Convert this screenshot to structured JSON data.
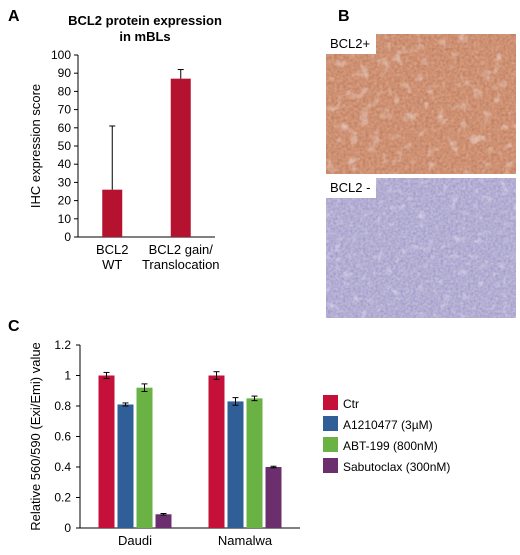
{
  "panels": {
    "a": "A",
    "b": "B",
    "c": "C"
  },
  "colors": {
    "panel_a_bar": "#b4122e",
    "ctr": "#c5113a",
    "a1210477": "#2f5f96",
    "abt199": "#6ab244",
    "sabutoclax": "#6c2f6d",
    "tissue_positive": "#a0522d",
    "tissue_negative": "#6b63ad"
  },
  "micrographs": [
    {
      "label": "BCL2+",
      "stain": "positive"
    },
    {
      "label": "BCL2 -",
      "stain": "negative"
    }
  ],
  "chart_data": [
    {
      "type": "bar",
      "title": "BCL2 protein expression in mBLs",
      "title_lines": [
        "BCL2 protein expression",
        "in mBLs"
      ],
      "xlabel": "",
      "ylabel": "IHC expression score",
      "categories": [
        [
          "BCL2",
          "WT"
        ],
        [
          "BCL2 gain/",
          "Translocation"
        ]
      ],
      "values": [
        26,
        87
      ],
      "error_upper": [
        61,
        92
      ],
      "ylim": [
        0,
        100
      ],
      "yticks": [
        0,
        10,
        20,
        30,
        40,
        50,
        60,
        70,
        80,
        90,
        100
      ],
      "grid": false,
      "legend": false
    },
    {
      "type": "bar",
      "title": "",
      "xlabel": "",
      "ylabel": "Relative 560/590 (Exi/Emi) value",
      "categories": [
        "Daudi",
        "Namalwa"
      ],
      "series": [
        {
          "name": "Ctr",
          "color": "#c5113a",
          "values": [
            1.0,
            1.0
          ],
          "errors": [
            0.02,
            0.025
          ]
        },
        {
          "name": "A1210477 (3µM)",
          "color": "#2f5f96",
          "values": [
            0.81,
            0.83
          ],
          "errors": [
            0.01,
            0.025
          ]
        },
        {
          "name": "ABT-199 (800nM)",
          "color": "#6ab244",
          "values": [
            0.92,
            0.85
          ],
          "errors": [
            0.025,
            0.015
          ]
        },
        {
          "name": "Sabutoclax (300nM)",
          "color": "#6c2f6d",
          "values": [
            0.09,
            0.4
          ],
          "errors": [
            0.005,
            0.005
          ]
        }
      ],
      "ylim": [
        0,
        1.2
      ],
      "yticks": [
        0,
        0.2,
        0.4,
        0.6,
        0.8,
        1,
        1.2
      ],
      "ytick_labels": [
        "0",
        "0.2",
        "0.4",
        "0.6",
        "0.8",
        "1",
        "1.2"
      ],
      "grid": false,
      "legend": "right"
    }
  ]
}
